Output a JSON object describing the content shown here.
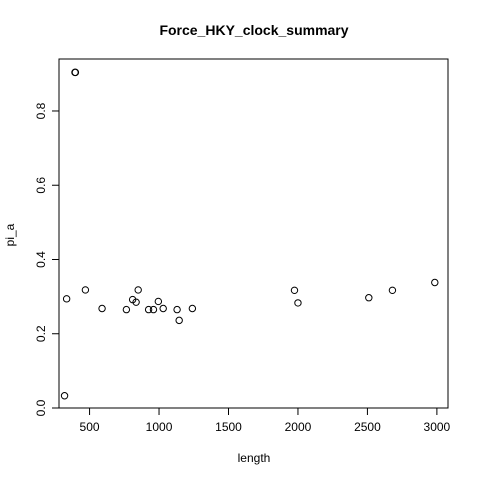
{
  "chart_data": {
    "type": "scatter",
    "title": "Force_HKY_clock_summary",
    "xlabel": "length",
    "ylabel": "pi_a",
    "xlim": [
      280,
      3080
    ],
    "ylim": [
      0.0,
      0.94
    ],
    "x_ticks": [
      500,
      1000,
      1500,
      2000,
      2500,
      3000
    ],
    "y_ticks": [
      0.0,
      0.2,
      0.4,
      0.6,
      0.8
    ],
    "x_tick_labels": [
      "500",
      "1000",
      "1500",
      "2000",
      "2500",
      "3000"
    ],
    "y_tick_labels": [
      "0.0",
      "0.2",
      "0.4",
      "0.6",
      "0.8"
    ],
    "grid": false,
    "legend": "none",
    "points": [
      {
        "x": 320,
        "y": 0.033
      },
      {
        "x": 335,
        "y": 0.294
      },
      {
        "x": 395,
        "y": 0.904
      },
      {
        "x": 398,
        "y": 0.904
      },
      {
        "x": 470,
        "y": 0.318
      },
      {
        "x": 590,
        "y": 0.268
      },
      {
        "x": 765,
        "y": 0.265
      },
      {
        "x": 810,
        "y": 0.292
      },
      {
        "x": 835,
        "y": 0.285
      },
      {
        "x": 850,
        "y": 0.318
      },
      {
        "x": 925,
        "y": 0.265
      },
      {
        "x": 960,
        "y": 0.265
      },
      {
        "x": 995,
        "y": 0.287
      },
      {
        "x": 1030,
        "y": 0.268
      },
      {
        "x": 1130,
        "y": 0.265
      },
      {
        "x": 1145,
        "y": 0.236
      },
      {
        "x": 1240,
        "y": 0.268
      },
      {
        "x": 1975,
        "y": 0.317
      },
      {
        "x": 2000,
        "y": 0.283
      },
      {
        "x": 2510,
        "y": 0.297
      },
      {
        "x": 2680,
        "y": 0.317
      },
      {
        "x": 2985,
        "y": 0.338
      }
    ]
  }
}
